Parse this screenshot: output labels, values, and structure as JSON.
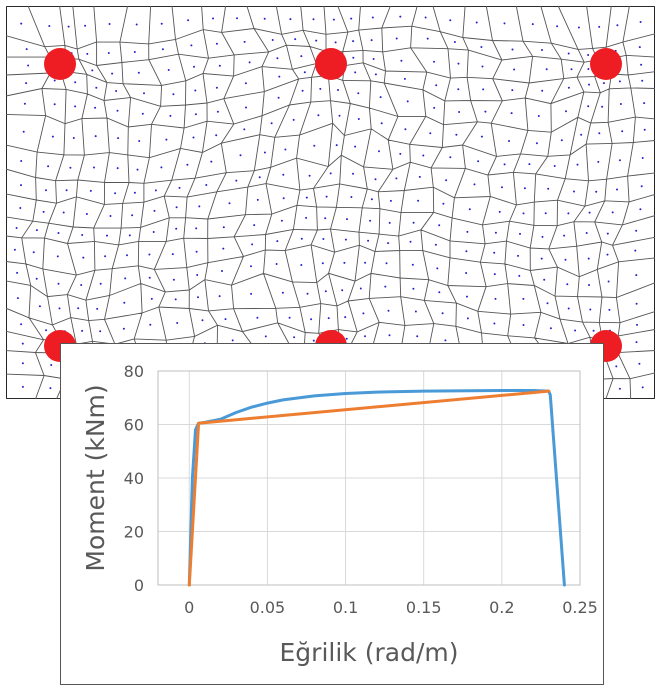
{
  "mesh": {
    "support_color": "#ee1c23",
    "support_count": 6,
    "line_color": "#555555",
    "node_color": "#2222cc"
  },
  "chart_data": {
    "type": "line",
    "xlabel": "Eğrilik (rad/m)",
    "ylabel": "Moment (kNm)",
    "xlim": [
      -0.02,
      0.25
    ],
    "ylim": [
      0,
      80
    ],
    "xticks": [
      0,
      0.05,
      0.1,
      0.15,
      0.2,
      0.25
    ],
    "xtick_labels": [
      "0",
      "0.05",
      "0.1",
      "0.15",
      "0.2",
      "0.25"
    ],
    "yticks": [
      0,
      20,
      40,
      60,
      80
    ],
    "ytick_labels": [
      "0",
      "20",
      "40",
      "60",
      "80"
    ],
    "grid": true,
    "legend": "none",
    "series": [
      {
        "color": "#4a9ad8",
        "x": [
          0,
          0.002,
          0.004,
          0.006,
          0.01,
          0.02,
          0.03,
          0.04,
          0.05,
          0.06,
          0.08,
          0.1,
          0.12,
          0.15,
          0.18,
          0.2,
          0.22,
          0.23,
          0.231,
          0.24
        ],
        "y": [
          0,
          40,
          58,
          60.5,
          60.8,
          62,
          64.5,
          66.5,
          68,
          69.2,
          70.7,
          71.6,
          72.1,
          72.5,
          72.6,
          72.7,
          72.7,
          72.5,
          71,
          0
        ]
      },
      {
        "color": "#ed7d31",
        "x": [
          0,
          0.006,
          0.23
        ],
        "y": [
          0,
          60.5,
          72.5
        ]
      }
    ]
  }
}
